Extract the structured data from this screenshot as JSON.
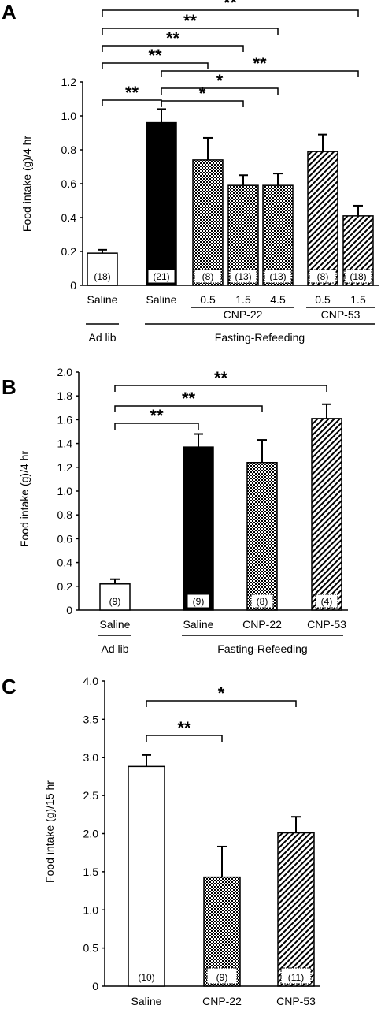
{
  "chart_data": [
    {
      "panel": "A",
      "type": "bar",
      "ylabel": "Food intake (g)/4 hr",
      "ylim": [
        0,
        1.2
      ],
      "yticks": [
        "0",
        "0.2",
        "0.4",
        "0.6",
        "0.8",
        "1.0",
        "1.2"
      ],
      "bars": [
        {
          "label": "Saline",
          "value": 0.19,
          "err": 0.02,
          "n": "(18)",
          "fill": "white"
        },
        {
          "label": "Saline",
          "value": 0.96,
          "err": 0.08,
          "n": "(21)",
          "fill": "black"
        },
        {
          "label": "0.5",
          "value": 0.74,
          "err": 0.13,
          "n": "(8)",
          "fill": "check"
        },
        {
          "label": "1.5",
          "value": 0.59,
          "err": 0.06,
          "n": "(13)",
          "fill": "check"
        },
        {
          "label": "4.5",
          "value": 0.59,
          "err": 0.07,
          "n": "(13)",
          "fill": "check"
        },
        {
          "label": "0.5",
          "value": 0.79,
          "err": 0.1,
          "n": "(8)",
          "fill": "hatch"
        },
        {
          "label": "1.5",
          "value": 0.41,
          "err": 0.06,
          "n": "(18)",
          "fill": "hatch"
        }
      ],
      "group_labels": [
        {
          "text": "CNP-22",
          "from": 2,
          "to": 4,
          "row": 1
        },
        {
          "text": "CNP-53",
          "from": 5,
          "to": 6,
          "row": 1
        },
        {
          "text": "Ad lib",
          "from": 0,
          "to": 0,
          "row": 2
        },
        {
          "text": "Fasting-Refeeding",
          "from": 1,
          "to": 6,
          "row": 2
        }
      ],
      "significance": [
        {
          "from": 0,
          "to": 6,
          "label": "**"
        },
        {
          "from": 0,
          "to": 4,
          "label": "**"
        },
        {
          "from": 0,
          "to": 3,
          "label": "**"
        },
        {
          "from": 0,
          "to": 2,
          "label": "**"
        },
        {
          "from": 1,
          "to": 6,
          "label": "**"
        },
        {
          "from": 1,
          "to": 4,
          "label": "*"
        },
        {
          "from": 0,
          "to": 1,
          "label": "**"
        },
        {
          "from": 1,
          "to": 3,
          "label": "*"
        }
      ]
    },
    {
      "panel": "B",
      "type": "bar",
      "ylabel": "Food intake (g)/4 hr",
      "ylim": [
        0,
        2.0
      ],
      "yticks": [
        "0",
        "0.2",
        "0.4",
        "0.6",
        "0.8",
        "1.0",
        "1.2",
        "1.4",
        "1.6",
        "1.8",
        "2.0"
      ],
      "bars": [
        {
          "label": "Saline",
          "value": 0.22,
          "err": 0.04,
          "n": "(9)",
          "fill": "white"
        },
        {
          "label": "Saline",
          "value": 1.37,
          "err": 0.11,
          "n": "(9)",
          "fill": "black"
        },
        {
          "label": "CNP-22",
          "value": 1.24,
          "err": 0.19,
          "n": "(8)",
          "fill": "check"
        },
        {
          "label": "CNP-53",
          "value": 1.61,
          "err": 0.12,
          "n": "(4)",
          "fill": "hatch"
        }
      ],
      "group_labels": [
        {
          "text": "Ad lib",
          "from": 0,
          "to": 0,
          "row": 2
        },
        {
          "text": "Fasting-Refeeding",
          "from": 1,
          "to": 3,
          "row": 2
        }
      ],
      "significance": [
        {
          "from": 0,
          "to": 3,
          "label": "**"
        },
        {
          "from": 0,
          "to": 2,
          "label": "**"
        },
        {
          "from": 0,
          "to": 1,
          "label": "**"
        }
      ]
    },
    {
      "panel": "C",
      "type": "bar",
      "ylabel": "Food intake (g)/15 hr",
      "ylim": [
        0,
        4.0
      ],
      "yticks": [
        "0",
        "0.5",
        "1.0",
        "1.5",
        "2.0",
        "2.5",
        "3.0",
        "3.5",
        "4.0"
      ],
      "bars": [
        {
          "label": "Saline",
          "value": 2.88,
          "err": 0.15,
          "n": "(10)",
          "fill": "white"
        },
        {
          "label": "CNP-22",
          "value": 1.43,
          "err": 0.4,
          "n": "(9)",
          "fill": "check"
        },
        {
          "label": "CNP-53",
          "value": 2.01,
          "err": 0.21,
          "n": "(11)",
          "fill": "hatch"
        }
      ],
      "group_labels": [],
      "significance": [
        {
          "from": 0,
          "to": 2,
          "label": "*"
        },
        {
          "from": 0,
          "to": 1,
          "label": "**"
        }
      ]
    }
  ]
}
